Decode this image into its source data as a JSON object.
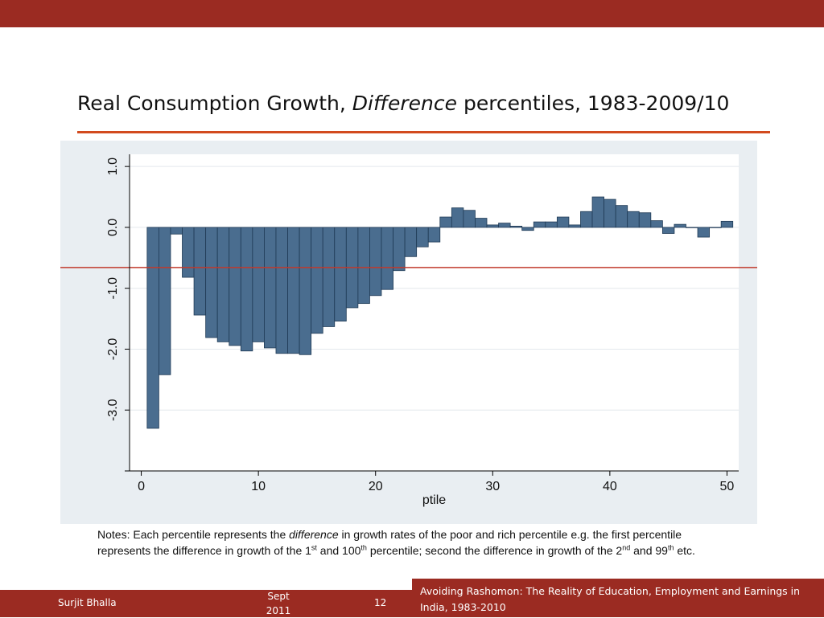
{
  "slide": {
    "title_part1": "Real Consumption Growth, ",
    "title_italic": "Difference",
    "title_part2": " percentiles, 1983-2009/10"
  },
  "colors": {
    "brand": "#9b2b22",
    "title_rule": "#d24a1e",
    "bar_fill": "#4a6d8f",
    "bar_stroke": "#1f3a55",
    "reference_line": "#c0392b",
    "panel_bg": "#e9eef2"
  },
  "chart_data": {
    "type": "bar",
    "title": "",
    "xlabel": "ptile",
    "ylabel": "",
    "xlim": [
      -1,
      51
    ],
    "ylim": [
      -4.0,
      1.2
    ],
    "x_ticks": [
      0,
      10,
      20,
      30,
      40,
      50
    ],
    "x_tick_labels": [
      "0",
      "10",
      "20",
      "30",
      "40",
      "50"
    ],
    "y_ticks": [
      1.0,
      0.0,
      -1.0,
      -2.0,
      -3.0
    ],
    "y_tick_labels": [
      "1.0",
      "0.0",
      "-1.0",
      "-2.0",
      "-3.0"
    ],
    "y_minor_ticks": [
      -4.0
    ],
    "reference_line_y": -0.66,
    "series": [
      {
        "name": "difference",
        "x": [
          1,
          2,
          3,
          4,
          5,
          6,
          7,
          8,
          9,
          10,
          11,
          12,
          13,
          14,
          15,
          16,
          17,
          18,
          19,
          20,
          21,
          22,
          23,
          24,
          25,
          26,
          27,
          28,
          29,
          30,
          31,
          32,
          33,
          34,
          35,
          36,
          37,
          38,
          39,
          40,
          41,
          42,
          43,
          44,
          45,
          46,
          47,
          48,
          49,
          50
        ],
        "values": [
          -3.3,
          -2.42,
          -0.11,
          -0.82,
          -1.44,
          -1.81,
          -1.88,
          -1.94,
          -2.03,
          -1.88,
          -1.98,
          -2.07,
          -2.07,
          -2.09,
          -1.74,
          -1.63,
          -1.54,
          -1.32,
          -1.25,
          -1.12,
          -1.02,
          -0.71,
          -0.48,
          -0.32,
          -0.24,
          0.17,
          0.32,
          0.28,
          0.15,
          0.04,
          0.07,
          0.02,
          -0.05,
          0.09,
          0.09,
          0.17,
          0.04,
          0.26,
          0.5,
          0.46,
          0.36,
          0.26,
          0.24,
          0.11,
          -0.1,
          0.05,
          0.0,
          -0.16,
          0.0,
          0.1
        ]
      }
    ]
  },
  "notes": {
    "prefix": "Notes: Each percentile represents the ",
    "italic": "difference",
    "part1": " in growth rates of the poor and rich percentile e.g. the first percentile represents the difference in growth of the 1",
    "sup1": "st",
    "part2": " and 100",
    "sup2": "th",
    "part3": " percentile; second the difference in growth of the 2",
    "sup3": "nd",
    "part4": " and 99",
    "sup4": "th",
    "part5": " etc."
  },
  "footer": {
    "author": "Surjit Bhalla",
    "date_line1": "Sept",
    "date_line2": "2011",
    "page": "12",
    "subtitle": "Avoiding Rashomon: The Reality of Education, Employment and Earnings in India, 1983-2010"
  }
}
